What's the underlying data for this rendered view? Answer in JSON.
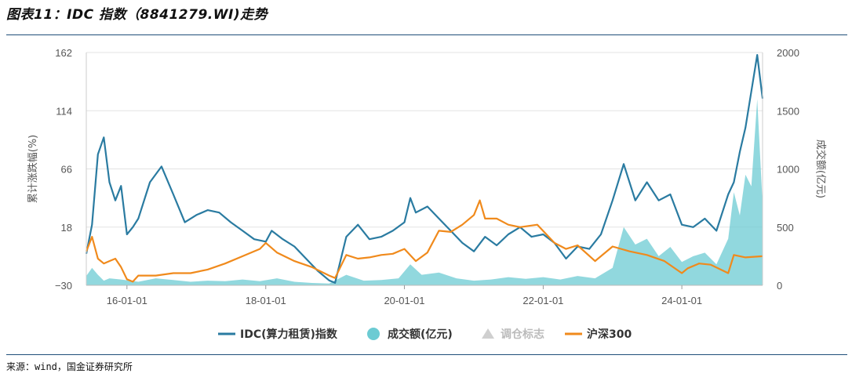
{
  "header": {
    "title": "图表11：IDC 指数（8841279.WI)走势",
    "source": "来源：wind，国金证券研究所"
  },
  "chart_data": {
    "type": "line",
    "x_ticks": [
      "16-01-01",
      "18-01-01",
      "20-01-01",
      "22-01-01",
      "24-01-01"
    ],
    "y_left": {
      "label": "累计涨跌幅(%)",
      "ticks": [
        "162",
        "114",
        "66",
        "18",
        "−30"
      ],
      "range": [
        -30,
        162
      ]
    },
    "y_right": {
      "label": "成交额(亿元)",
      "ticks": [
        "2000",
        "1500",
        "1000",
        "500",
        "0"
      ],
      "range": [
        0,
        2000
      ]
    },
    "x_range": [
      "2015-06-01",
      "2025-03-01"
    ],
    "legend": [
      {
        "key": "idc",
        "label": "IDC(算力租赁)指数",
        "color": "#2a7ba1",
        "marker": "line"
      },
      {
        "key": "volume",
        "label": "成交额(亿元)",
        "color": "#6ccbd3",
        "marker": "circle"
      },
      {
        "key": "adjust",
        "label": "调仓标志",
        "color": "#cfcfcf",
        "marker": "triangle"
      },
      {
        "key": "hs300",
        "label": "沪深300",
        "color": "#f08a1c",
        "marker": "line"
      }
    ],
    "series": [
      {
        "name": "IDC(算力租赁)指数",
        "axis": "left",
        "points": [
          [
            "2015-06-01",
            -4
          ],
          [
            "2015-07-01",
            20
          ],
          [
            "2015-08-01",
            78
          ],
          [
            "2015-09-01",
            92
          ],
          [
            "2015-10-01",
            55
          ],
          [
            "2015-11-01",
            40
          ],
          [
            "2015-12-01",
            52
          ],
          [
            "2016-01-01",
            12
          ],
          [
            "2016-02-01",
            18
          ],
          [
            "2016-03-01",
            25
          ],
          [
            "2016-05-01",
            55
          ],
          [
            "2016-07-01",
            68
          ],
          [
            "2016-09-01",
            45
          ],
          [
            "2016-11-01",
            22
          ],
          [
            "2017-01-01",
            28
          ],
          [
            "2017-03-01",
            32
          ],
          [
            "2017-05-01",
            30
          ],
          [
            "2017-07-01",
            22
          ],
          [
            "2017-09-01",
            15
          ],
          [
            "2017-11-01",
            8
          ],
          [
            "2018-01-01",
            6
          ],
          [
            "2018-02-01",
            15
          ],
          [
            "2018-04-01",
            8
          ],
          [
            "2018-06-01",
            2
          ],
          [
            "2018-08-01",
            -8
          ],
          [
            "2018-10-01",
            -18
          ],
          [
            "2018-12-01",
            -26
          ],
          [
            "2019-01-01",
            -28
          ],
          [
            "2019-03-01",
            10
          ],
          [
            "2019-05-01",
            20
          ],
          [
            "2019-07-01",
            8
          ],
          [
            "2019-09-01",
            10
          ],
          [
            "2019-11-01",
            15
          ],
          [
            "2020-01-01",
            22
          ],
          [
            "2020-02-01",
            42
          ],
          [
            "2020-03-01",
            30
          ],
          [
            "2020-05-01",
            35
          ],
          [
            "2020-07-01",
            25
          ],
          [
            "2020-09-01",
            15
          ],
          [
            "2020-11-01",
            5
          ],
          [
            "2021-01-01",
            -2
          ],
          [
            "2021-03-01",
            10
          ],
          [
            "2021-05-01",
            3
          ],
          [
            "2021-07-01",
            12
          ],
          [
            "2021-09-01",
            18
          ],
          [
            "2021-11-01",
            10
          ],
          [
            "2022-01-01",
            12
          ],
          [
            "2022-03-01",
            5
          ],
          [
            "2022-05-01",
            -8
          ],
          [
            "2022-07-01",
            2
          ],
          [
            "2022-09-01",
            0
          ],
          [
            "2022-11-01",
            12
          ],
          [
            "2023-01-01",
            40
          ],
          [
            "2023-03-01",
            70
          ],
          [
            "2023-05-01",
            40
          ],
          [
            "2023-07-01",
            55
          ],
          [
            "2023-09-01",
            40
          ],
          [
            "2023-11-01",
            45
          ],
          [
            "2024-01-01",
            20
          ],
          [
            "2024-03-01",
            18
          ],
          [
            "2024-05-01",
            25
          ],
          [
            "2024-07-01",
            15
          ],
          [
            "2024-09-01",
            45
          ],
          [
            "2024-10-01",
            55
          ],
          [
            "2024-11-01",
            80
          ],
          [
            "2024-12-01",
            100
          ],
          [
            "2025-01-01",
            130
          ],
          [
            "2025-02-01",
            160
          ],
          [
            "2025-03-01",
            124
          ]
        ]
      },
      {
        "name": "沪深300",
        "axis": "left",
        "points": [
          [
            "2015-06-01",
            -2
          ],
          [
            "2015-07-01",
            10
          ],
          [
            "2015-08-01",
            -8
          ],
          [
            "2015-09-01",
            -12
          ],
          [
            "2015-10-01",
            -10
          ],
          [
            "2015-11-01",
            -8
          ],
          [
            "2015-12-01",
            -15
          ],
          [
            "2016-01-01",
            -25
          ],
          [
            "2016-02-01",
            -27
          ],
          [
            "2016-03-01",
            -22
          ],
          [
            "2016-06-01",
            -22
          ],
          [
            "2016-09-01",
            -20
          ],
          [
            "2016-12-01",
            -20
          ],
          [
            "2017-03-01",
            -17
          ],
          [
            "2017-06-01",
            -12
          ],
          [
            "2017-09-01",
            -6
          ],
          [
            "2017-12-01",
            0
          ],
          [
            "2018-01-01",
            5
          ],
          [
            "2018-03-01",
            -3
          ],
          [
            "2018-06-01",
            -10
          ],
          [
            "2018-09-01",
            -15
          ],
          [
            "2018-12-01",
            -22
          ],
          [
            "2019-01-01",
            -24
          ],
          [
            "2019-03-01",
            -5
          ],
          [
            "2019-05-01",
            -8
          ],
          [
            "2019-07-01",
            -7
          ],
          [
            "2019-09-01",
            -5
          ],
          [
            "2019-11-01",
            -4
          ],
          [
            "2020-01-01",
            0
          ],
          [
            "2020-03-01",
            -10
          ],
          [
            "2020-05-01",
            -3
          ],
          [
            "2020-07-01",
            15
          ],
          [
            "2020-09-01",
            14
          ],
          [
            "2020-11-01",
            20
          ],
          [
            "2021-01-01",
            28
          ],
          [
            "2021-02-01",
            40
          ],
          [
            "2021-03-01",
            25
          ],
          [
            "2021-05-01",
            25
          ],
          [
            "2021-07-01",
            20
          ],
          [
            "2021-09-01",
            18
          ],
          [
            "2021-12-01",
            20
          ],
          [
            "2022-03-01",
            5
          ],
          [
            "2022-05-01",
            0
          ],
          [
            "2022-07-01",
            3
          ],
          [
            "2022-10-01",
            -10
          ],
          [
            "2023-01-01",
            2
          ],
          [
            "2023-04-01",
            -2
          ],
          [
            "2023-07-01",
            -5
          ],
          [
            "2023-10-01",
            -10
          ],
          [
            "2024-01-01",
            -20
          ],
          [
            "2024-02-01",
            -16
          ],
          [
            "2024-04-01",
            -12
          ],
          [
            "2024-06-01",
            -13
          ],
          [
            "2024-09-01",
            -20
          ],
          [
            "2024-10-01",
            -5
          ],
          [
            "2024-12-01",
            -7
          ],
          [
            "2025-03-01",
            -6
          ]
        ]
      },
      {
        "name": "成交额(亿元)",
        "axis": "right",
        "type": "area",
        "points": [
          [
            "2015-06-01",
            80
          ],
          [
            "2015-07-01",
            150
          ],
          [
            "2015-08-01",
            90
          ],
          [
            "2015-09-01",
            40
          ],
          [
            "2015-10-01",
            60
          ],
          [
            "2015-12-01",
            50
          ],
          [
            "2016-03-01",
            30
          ],
          [
            "2016-06-01",
            60
          ],
          [
            "2016-09-01",
            45
          ],
          [
            "2016-12-01",
            30
          ],
          [
            "2017-03-01",
            40
          ],
          [
            "2017-06-01",
            35
          ],
          [
            "2017-09-01",
            50
          ],
          [
            "2017-12-01",
            35
          ],
          [
            "2018-03-01",
            60
          ],
          [
            "2018-06-01",
            30
          ],
          [
            "2018-09-01",
            20
          ],
          [
            "2018-12-01",
            15
          ],
          [
            "2019-03-01",
            90
          ],
          [
            "2019-06-01",
            40
          ],
          [
            "2019-09-01",
            45
          ],
          [
            "2019-12-01",
            60
          ],
          [
            "2020-02-01",
            180
          ],
          [
            "2020-04-01",
            90
          ],
          [
            "2020-07-01",
            110
          ],
          [
            "2020-10-01",
            60
          ],
          [
            "2021-01-01",
            40
          ],
          [
            "2021-04-01",
            50
          ],
          [
            "2021-07-01",
            70
          ],
          [
            "2021-10-01",
            55
          ],
          [
            "2022-01-01",
            70
          ],
          [
            "2022-04-01",
            50
          ],
          [
            "2022-07-01",
            80
          ],
          [
            "2022-10-01",
            60
          ],
          [
            "2023-01-01",
            150
          ],
          [
            "2023-03-01",
            500
          ],
          [
            "2023-05-01",
            350
          ],
          [
            "2023-07-01",
            400
          ],
          [
            "2023-09-01",
            250
          ],
          [
            "2023-11-01",
            330
          ],
          [
            "2024-01-01",
            200
          ],
          [
            "2024-03-01",
            250
          ],
          [
            "2024-05-01",
            280
          ],
          [
            "2024-07-01",
            180
          ],
          [
            "2024-09-01",
            400
          ],
          [
            "2024-10-01",
            800
          ],
          [
            "2024-11-01",
            600
          ],
          [
            "2024-12-01",
            950
          ],
          [
            "2025-01-01",
            850
          ],
          [
            "2025-02-01",
            1600
          ],
          [
            "2025-03-01",
            700
          ]
        ]
      }
    ],
    "grid": "horizontal",
    "legend_position": "bottom"
  }
}
